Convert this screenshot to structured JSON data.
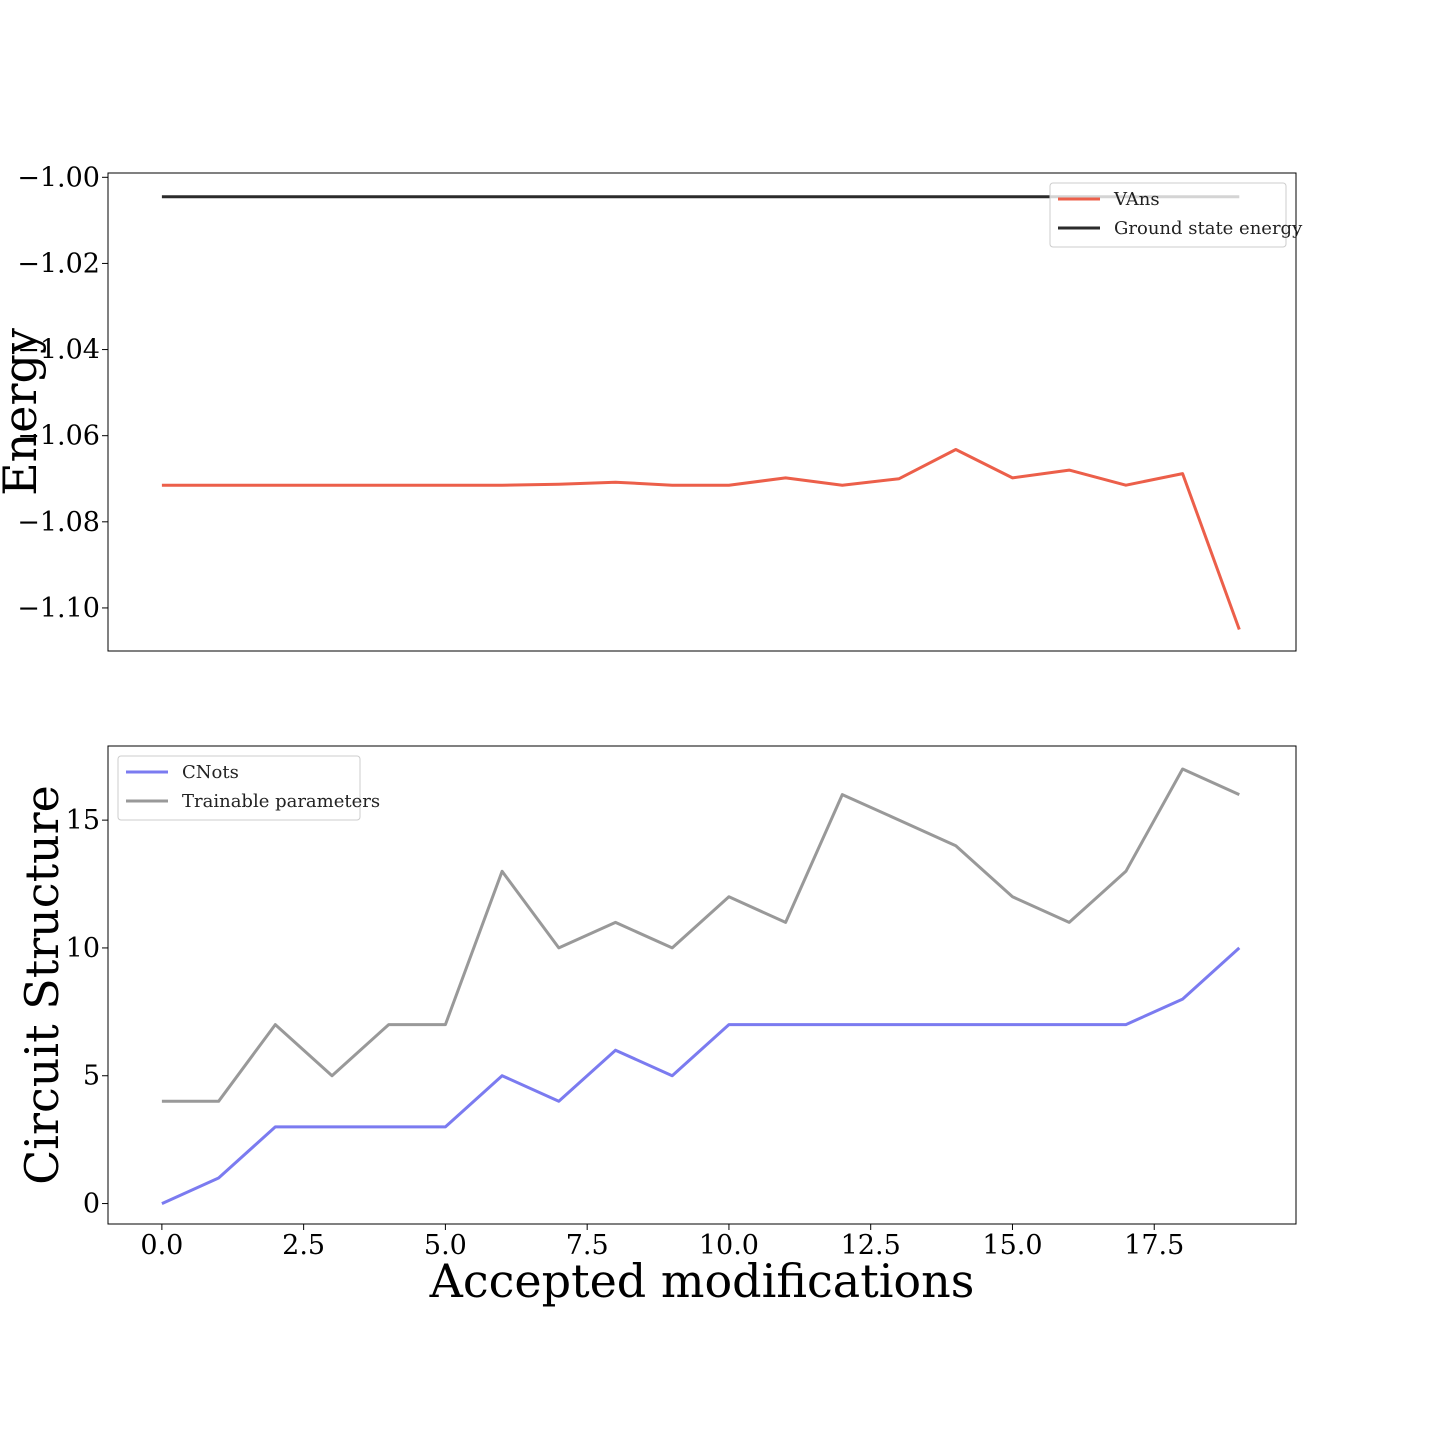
{
  "chart_data": [
    {
      "type": "line",
      "ylabel": "Energy",
      "xlabel": "",
      "xlim": [
        -0.95,
        20.0
      ],
      "ylim": [
        -1.11,
        -0.999
      ],
      "yticks": [
        -1.0,
        -1.02,
        -1.04,
        -1.06,
        -1.08,
        -1.1
      ],
      "ytick_labels": [
        "−1.00",
        "−1.02",
        "−1.04",
        "−1.06",
        "−1.08",
        "−1.10"
      ],
      "legend_position": "top-right",
      "x": [
        0,
        1,
        2,
        3,
        4,
        5,
        6,
        7,
        8,
        9,
        10,
        11,
        12,
        13,
        14,
        15,
        16,
        17,
        18,
        19
      ],
      "series": [
        {
          "name": "VAns",
          "color": "#ec5f4a",
          "values": [
            -1.0715,
            -1.0715,
            -1.0715,
            -1.0715,
            -1.0715,
            -1.0715,
            -1.0715,
            -1.0713,
            -1.0708,
            -1.0715,
            -1.0715,
            -1.0698,
            -1.0715,
            -1.07,
            -1.0632,
            -1.0698,
            -1.068,
            -1.0715,
            -1.0688,
            -1.105
          ]
        },
        {
          "name": "Ground state energy",
          "color": "#2b2b2b",
          "values": [
            -1.0045,
            -1.0045,
            -1.0045,
            -1.0045,
            -1.0045,
            -1.0045,
            -1.0045,
            -1.0045,
            -1.0045,
            -1.0045,
            -1.0045,
            -1.0045,
            -1.0045,
            -1.0045,
            -1.0045,
            -1.0045,
            -1.0045,
            -1.0045,
            -1.0045,
            -1.0045
          ]
        }
      ]
    },
    {
      "type": "line",
      "ylabel": "Circuit Structure",
      "xlabel": "Accepted modifications",
      "xlim": [
        -0.95,
        20.0
      ],
      "ylim": [
        -0.8,
        17.9
      ],
      "xticks": [
        0,
        2.5,
        5,
        7.5,
        10,
        12.5,
        15,
        17.5
      ],
      "xtick_labels": [
        "0.0",
        "2.5",
        "5.0",
        "7.5",
        "10.0",
        "12.5",
        "15.0",
        "17.5"
      ],
      "yticks": [
        0,
        5,
        10,
        15
      ],
      "ytick_labels": [
        "0",
        "5",
        "10",
        "15"
      ],
      "legend_position": "top-left",
      "x": [
        0,
        1,
        2,
        3,
        4,
        5,
        6,
        7,
        8,
        9,
        10,
        11,
        12,
        13,
        14,
        15,
        16,
        17,
        18,
        19
      ],
      "series": [
        {
          "name": "CNots",
          "color": "#7b7bf0",
          "values": [
            0,
            1,
            3,
            3,
            3,
            3,
            5,
            4,
            6,
            5,
            7,
            7,
            7,
            7,
            7,
            7,
            7,
            7,
            8,
            10
          ]
        },
        {
          "name": "Trainable parameters",
          "color": "#999999",
          "values": [
            4,
            4,
            7,
            5,
            7,
            7,
            13,
            10,
            11,
            10,
            12,
            11,
            16,
            15,
            14,
            12,
            11,
            13,
            17,
            16
          ]
        }
      ]
    }
  ]
}
